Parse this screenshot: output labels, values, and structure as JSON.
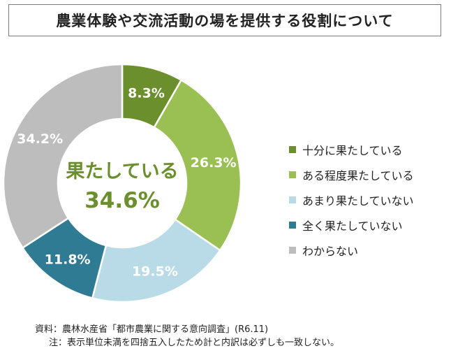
{
  "chart_data": {
    "type": "pie",
    "title": "農業体験や交流活動の場を提供する役割について",
    "categories": [
      "十分に果たしている",
      "ある程度果たしている",
      "あまり果たしていない",
      "全く果たしていない",
      "わからない"
    ],
    "values": [
      8.3,
      26.3,
      19.5,
      11.8,
      34.2
    ],
    "value_labels": [
      "8.3%",
      "26.3%",
      "19.5%",
      "11.8%",
      "34.2%"
    ],
    "colors": [
      "#6b8f2c",
      "#9ac054",
      "#b9dbe8",
      "#2e7b93",
      "#bdbdbd"
    ],
    "donut": true,
    "center_label": "果たしている",
    "center_value": "34.6%",
    "legend_position": "right"
  },
  "notes": {
    "source": "資料：農林水産省「都市農業に関する意向調査」(R6.11)",
    "note": "注：表示単位未満を四捨五入したため計と内訳は必ずしも一致しない。"
  }
}
